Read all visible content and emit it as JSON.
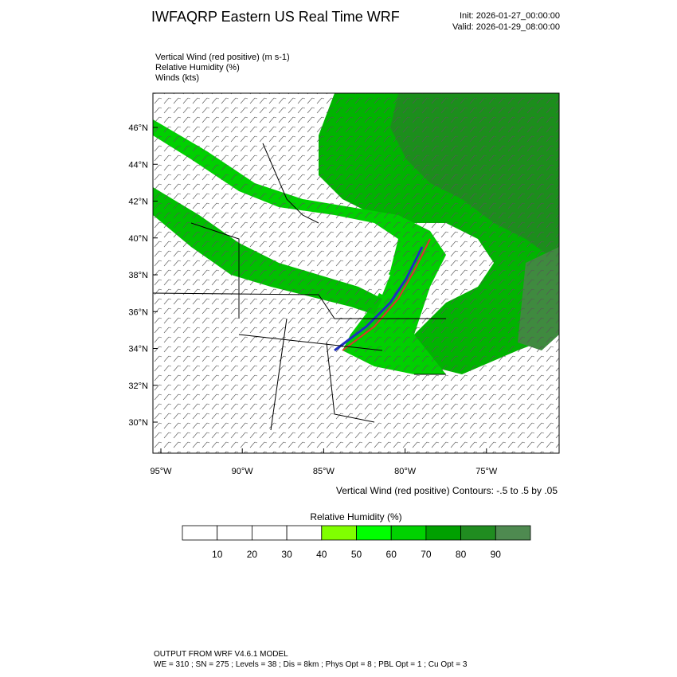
{
  "header": {
    "title": "IWFAQRP Eastern US Real Time WRF",
    "init": "Init: 2026-01-27_00:00:00",
    "valid": "Valid: 2026-01-29_08:00:00"
  },
  "fields": [
    "Vertical Wind (red positive)   (m s-1)",
    "Relative Humidity   (%)",
    "Winds   (kts)"
  ],
  "map": {
    "lat_ticks": [
      "46°N",
      "44°N",
      "42°N",
      "40°N",
      "38°N",
      "36°N",
      "34°N",
      "32°N",
      "30°N"
    ],
    "lon_ticks": [
      "95°W",
      "90°W",
      "85°W",
      "80°W",
      "75°W"
    ]
  },
  "contour_note": "Vertical Wind (red positive) Contours: -.5 to .5 by .05",
  "colorbar": {
    "title": "Relative Humidity   (%)",
    "labels": [
      "10",
      "20",
      "30",
      "40",
      "50",
      "60",
      "70",
      "80",
      "90"
    ],
    "colors": [
      "#ffffff",
      "#ffffff",
      "#ffffff",
      "#ffffff",
      "#80ff00",
      "#00ff00",
      "#00d200",
      "#00a000",
      "#208c20",
      "#4e8a50"
    ]
  },
  "footer": {
    "line1": "OUTPUT FROM WRF V4.6.1 MODEL",
    "line2": "WE = 310 ; SN = 275 ; Levels = 38 ; Dis = 8km ; Phys Opt = 8 ; PBL Opt = 1 ; Cu Opt = 3"
  }
}
